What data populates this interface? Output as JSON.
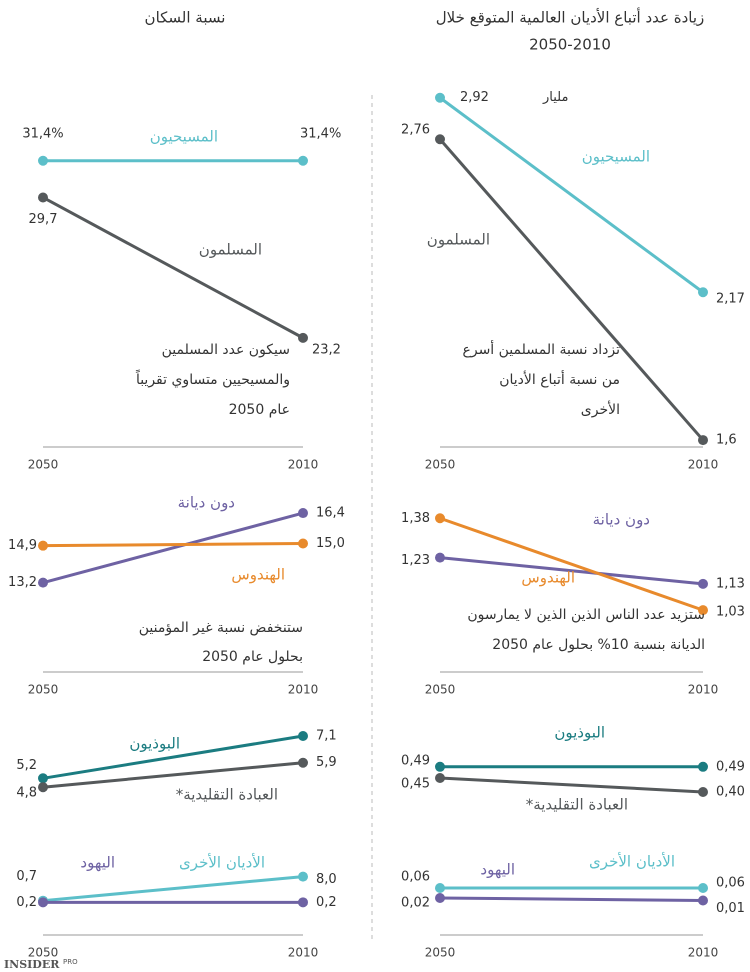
{
  "column_titles": [
    [
      "زيادة عدد أتباع الأديان العالمية المتوقع خلال",
      "2050-2010"
    ],
    [
      "نسبة السكان"
    ]
  ],
  "footer": {
    "brand": "INSIDER",
    "tag": "PRO"
  },
  "chart_data": [
    {
      "type": "line",
      "x": [
        "2050",
        "2010"
      ],
      "ylim": [
        1.5,
        3.0
      ],
      "annotation": "مليار",
      "series": [
        {
          "name": "المسيحيون",
          "color": "#5cbfc9",
          "values": [
            2.92,
            2.17
          ],
          "value_labels": [
            "2,92",
            "2,17"
          ]
        },
        {
          "name": "المسلمون",
          "color": "#55595b",
          "values": [
            2.76,
            1.6
          ],
          "value_labels": [
            "2,76",
            "1,6"
          ]
        }
      ],
      "notes": [
        "تزداد نسبة المسلمين أسرع",
        "من نسبة أتباع الأديان",
        "الأخرى"
      ]
    },
    {
      "type": "line",
      "x": [
        "2050",
        "2010"
      ],
      "ylim": [
        1.0,
        1.4
      ],
      "series": [
        {
          "name": "دون ديانة",
          "color": "#6e62a3",
          "values": [
            1.23,
            1.13
          ],
          "value_labels": [
            "1,23",
            "1,13"
          ]
        },
        {
          "name": "الهندوس",
          "color": "#e88a2c",
          "values": [
            1.38,
            1.03
          ],
          "value_labels": [
            "1,38",
            "1,03"
          ]
        }
      ],
      "notes": [
        "ستزيد عدد الناس الذين الذين لا يمارسون",
        "الديانة بنسبة 10% بحلول عام 2050"
      ]
    },
    {
      "type": "line",
      "x": [
        null,
        null
      ],
      "ylim": [
        0.4,
        0.5
      ],
      "series": [
        {
          "name": "البوذيون",
          "color": "#1b7c81",
          "values": [
            0.49,
            0.49
          ],
          "value_labels": [
            "0,49",
            "0,49"
          ]
        },
        {
          "name": "العبادة التقليدية*",
          "color": "#55595b",
          "values": [
            0.45,
            0.4
          ],
          "value_labels": [
            "0,45",
            "0,40"
          ]
        }
      ]
    },
    {
      "type": "line",
      "x": [
        "2050",
        "2010"
      ],
      "ylim": [
        0,
        0.1
      ],
      "series": [
        {
          "name": "الأديان الأخرى",
          "color": "#5cbfc9",
          "values": [
            0.06,
            0.06
          ],
          "value_labels": [
            "0,06",
            "0,06"
          ]
        },
        {
          "name": "اليهود",
          "color": "#6e62a3",
          "values": [
            0.02,
            0.01
          ],
          "value_labels": [
            "0,02",
            "0,01"
          ]
        }
      ]
    },
    {
      "type": "line",
      "x": [
        "2050",
        "2010"
      ],
      "ylim": [
        20,
        35
      ],
      "series": [
        {
          "name": "المسيحيون",
          "color": "#5cbfc9",
          "values": [
            31.4,
            31.4
          ],
          "value_labels": [
            "31,4%",
            "31,4%"
          ]
        },
        {
          "name": "المسلمون",
          "color": "#55595b",
          "values": [
            29.7,
            23.2
          ],
          "value_labels": [
            "29,7",
            "23,2"
          ]
        }
      ],
      "notes": [
        "سيكون عدد المسلمين",
        "والمسيحيين متساوي تقريباً",
        "عام 2050"
      ]
    },
    {
      "type": "line",
      "x": [
        "2050",
        "2010"
      ],
      "ylim": [
        13,
        17
      ],
      "series": [
        {
          "name": "دون ديانة",
          "color": "#6e62a3",
          "values": [
            13.2,
            16.4
          ],
          "value_labels": [
            "13,2",
            "16,4"
          ]
        },
        {
          "name": "الهندوس",
          "color": "#e88a2c",
          "values": [
            14.9,
            15.0
          ],
          "value_labels": [
            "14,9",
            "15,0"
          ]
        }
      ],
      "notes": [
        "ستنخفض نسبة غير المؤمنين",
        "بحلول عام 2050"
      ]
    },
    {
      "type": "line",
      "x": [
        null,
        null
      ],
      "ylim": [
        4,
        8
      ],
      "series": [
        {
          "name": "البوذيون",
          "color": "#1b7c81",
          "values": [
            5.2,
            7.1
          ],
          "value_labels": [
            "5,2",
            "7,1"
          ]
        },
        {
          "name": "العبادة التقليدية*",
          "color": "#55595b",
          "values": [
            4.8,
            5.9
          ],
          "value_labels": [
            "4,8",
            "5,9"
          ]
        }
      ]
    },
    {
      "type": "line",
      "x": [
        "2050",
        "2010"
      ],
      "ylim": [
        0,
        10
      ],
      "series": [
        {
          "name": "الأديان الأخرى",
          "color": "#5cbfc9",
          "values": [
            0.7,
            8.0
          ],
          "value_labels": [
            "0,7",
            "8,0"
          ]
        },
        {
          "name": "اليهود",
          "color": "#6e62a3",
          "values": [
            0.2,
            0.2
          ],
          "value_labels": [
            "0,2",
            "0,2"
          ]
        }
      ]
    }
  ]
}
